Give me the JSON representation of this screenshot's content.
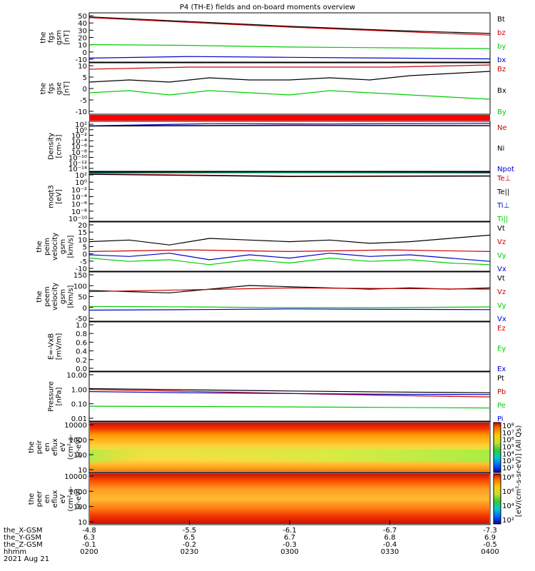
{
  "title": "P4 (TH-E) fields and on-board moments overview",
  "chart_data": [
    {
      "id": "fgs_gsm",
      "type": "line",
      "ylabel": [
        "the",
        "fgs",
        "gsm",
        "[nT]"
      ],
      "yticks": [
        "50",
        "40",
        "30",
        "20",
        "10",
        "0",
        "-10"
      ],
      "ylim": [
        -10,
        52
      ],
      "legend": [
        {
          "label": "Bt",
          "color": "#000000"
        },
        {
          "label": "bz",
          "color": "#cc0000"
        },
        {
          "label": "by",
          "color": "#00cc00"
        },
        {
          "label": "bx",
          "color": "#0000cc"
        }
      ],
      "series": [
        {
          "name": "Bt",
          "color": "#000000",
          "x": [
            0,
            0.25,
            0.5,
            0.75,
            1
          ],
          "values": [
            47,
            41,
            35,
            30,
            26
          ]
        },
        {
          "name": "bz",
          "color": "#cc0000",
          "x": [
            0,
            0.25,
            0.5,
            0.75,
            1
          ],
          "values": [
            46,
            40,
            34,
            29,
            24
          ]
        },
        {
          "name": "by",
          "color": "#00cc00",
          "x": [
            0,
            0.25,
            0.5,
            0.75,
            1
          ],
          "values": [
            12,
            11,
            9,
            8,
            7
          ]
        },
        {
          "name": "bx",
          "color": "#0000cc",
          "x": [
            0,
            0.25,
            0.5,
            0.75,
            1
          ],
          "values": [
            -5,
            -3,
            -4,
            -5,
            -6
          ]
        }
      ]
    },
    {
      "id": "fgs_dsl",
      "type": "line",
      "ylabel": [
        "the",
        "fgs",
        "gse",
        "[nT]"
      ],
      "yticks": [
        "10",
        "5",
        "0",
        "-5",
        "-10"
      ],
      "ylim": [
        -14,
        10
      ],
      "legend": [
        {
          "label": "Bz",
          "color": "#cc0000"
        },
        {
          "label": "Bx",
          "color": "#000000"
        },
        {
          "label": "By",
          "color": "#00cc00"
        }
      ],
      "series": [
        {
          "name": "Bz",
          "color": "#cc0000",
          "x": [
            0,
            0.25,
            0.5,
            0.75,
            1
          ],
          "values": [
            7,
            8,
            8,
            8,
            9
          ]
        },
        {
          "name": "Bx",
          "color": "#000000",
          "x": [
            0,
            0.1,
            0.2,
            0.3,
            0.4,
            0.5,
            0.6,
            0.7,
            0.8,
            0.9,
            1
          ],
          "values": [
            1,
            2,
            1,
            3,
            2,
            2,
            3,
            2,
            4,
            5,
            6
          ]
        },
        {
          "name": "By",
          "color": "#00cc00",
          "x": [
            0,
            0.1,
            0.2,
            0.3,
            0.4,
            0.5,
            0.6,
            0.7,
            0.8,
            0.9,
            1
          ],
          "values": [
            -4,
            -3,
            -5,
            -3,
            -4,
            -5,
            -3,
            -4,
            -5,
            -6,
            -7
          ]
        }
      ]
    },
    {
      "id": "density",
      "type": "line",
      "log": true,
      "ylabel": [
        "Density",
        "[cm-3]"
      ],
      "yticks": [
        "10²",
        "10⁰",
        "10⁻²",
        "10⁻⁴",
        "10⁻⁶",
        "10⁻⁸",
        "10⁻¹⁰",
        "10⁻¹²",
        "10⁻¹⁴"
      ],
      "ylim": [
        -14,
        3
      ],
      "legend": [
        {
          "label": "Ne",
          "color": "#cc0000"
        },
        {
          "label": "Ni",
          "color": "#000000"
        },
        {
          "label": "Npot",
          "color": "#0000cc"
        }
      ],
      "series": [
        {
          "name": "Ne",
          "color": "#cc0000",
          "x": [
            0,
            0.5,
            1
          ],
          "values": [
            1.5,
            1.7,
            1.6
          ]
        },
        {
          "name": "Ni",
          "color": "#000000",
          "x": [
            0,
            0.5,
            1
          ],
          "values": [
            1.4,
            1.6,
            1.5
          ]
        },
        {
          "name": "Npot",
          "color": "#0000cc",
          "x": [
            0,
            0.3,
            0.6,
            1
          ],
          "values": [
            1.5,
            2.2,
            2.1,
            2.3
          ]
        }
      ]
    },
    {
      "id": "temperature",
      "type": "line",
      "log": true,
      "ylabel": [
        "moqt3",
        "[eV]"
      ],
      "yticks": [
        "10²",
        "10⁰",
        "10⁻²",
        "10⁻⁴",
        "10⁻⁶",
        "10⁻⁸",
        "10⁻¹⁰"
      ],
      "ylim": [
        -10,
        3
      ],
      "legend": [
        {
          "label": "Te⊥",
          "color": "#cc0000"
        },
        {
          "label": "Te||",
          "color": "#000000"
        },
        {
          "label": "Ti⊥",
          "color": "#0000cc"
        },
        {
          "label": "Ti||",
          "color": "#00cc00"
        }
      ],
      "series": [
        {
          "name": "Te⊥",
          "color": "#cc0000",
          "x": [
            0,
            0.5,
            1
          ],
          "values": [
            2.5,
            1.9,
            2.0
          ]
        },
        {
          "name": "Te||",
          "color": "#000000",
          "x": [
            0,
            0.5,
            1
          ],
          "values": [
            2.4,
            1.8,
            1.9
          ]
        },
        {
          "name": "Ti⊥",
          "color": "#0000cc",
          "x": [
            0,
            0.5,
            1
          ],
          "values": [
            2.8,
            2.9,
            2.8
          ]
        },
        {
          "name": "Ti||",
          "color": "#00cc00",
          "x": [
            0,
            0.5,
            1
          ],
          "values": [
            2.7,
            2.8,
            2.7
          ]
        }
      ]
    },
    {
      "id": "peim_velocity",
      "type": "line",
      "ylabel": [
        "the",
        "peim",
        "velocity",
        "gsm",
        "[km/s]"
      ],
      "yticks": [
        "20",
        "15",
        "10",
        "5",
        "0",
        "-5",
        "-10"
      ],
      "ylim": [
        -10,
        20
      ],
      "legend": [
        {
          "label": "Vt",
          "color": "#000000"
        },
        {
          "label": "Vz",
          "color": "#cc0000"
        },
        {
          "label": "Vy",
          "color": "#00cc00"
        },
        {
          "label": "Vx",
          "color": "#0000cc"
        }
      ],
      "series": [
        {
          "name": "Vt",
          "color": "#000000",
          "x": [
            0,
            0.1,
            0.2,
            0.3,
            0.4,
            0.5,
            0.6,
            0.7,
            0.8,
            0.9,
            1
          ],
          "values": [
            8,
            9,
            6,
            10,
            9,
            8,
            9,
            7,
            8,
            10,
            12
          ]
        },
        {
          "name": "Vz",
          "color": "#cc0000",
          "x": [
            0,
            0.25,
            0.5,
            0.75,
            1
          ],
          "values": [
            2,
            3,
            2,
            3,
            2
          ]
        },
        {
          "name": "Vy",
          "color": "#00cc00",
          "x": [
            0,
            0.1,
            0.2,
            0.3,
            0.4,
            0.5,
            0.6,
            0.7,
            0.8,
            0.9,
            1
          ],
          "values": [
            -2,
            -4,
            -3,
            -6,
            -3,
            -5,
            -2,
            -4,
            -3,
            -5,
            -6
          ]
        },
        {
          "name": "Vx",
          "color": "#0000cc",
          "x": [
            0,
            0.1,
            0.2,
            0.3,
            0.4,
            0.5,
            0.6,
            0.7,
            0.8,
            0.9,
            1
          ],
          "values": [
            0,
            -1,
            1,
            -3,
            0,
            -2,
            1,
            -1,
            0,
            -2,
            -4
          ]
        }
      ]
    },
    {
      "id": "peem_velocity",
      "type": "line",
      "ylabel": [
        "the",
        "peem",
        "velocity",
        "gsm",
        "[km/s]"
      ],
      "yticks": [
        "150",
        "100",
        "50",
        "0",
        "-50"
      ],
      "ylim": [
        -50,
        150
      ],
      "legend": [
        {
          "label": "Vt",
          "color": "#000000"
        },
        {
          "label": "Vz",
          "color": "#cc0000"
        },
        {
          "label": "Vy",
          "color": "#00cc00"
        },
        {
          "label": "Vx",
          "color": "#0000cc"
        }
      ],
      "series": [
        {
          "name": "Vt",
          "color": "#000000",
          "x": [
            0,
            0.1,
            0.2,
            0.3,
            0.4,
            0.5,
            0.6,
            0.7,
            0.8,
            0.9,
            1
          ],
          "values": [
            75,
            70,
            65,
            80,
            95,
            90,
            85,
            80,
            85,
            80,
            85
          ]
        },
        {
          "name": "Vz",
          "color": "#cc0000",
          "x": [
            0,
            0.5,
            1
          ],
          "values": [
            70,
            85,
            80
          ]
        },
        {
          "name": "Vy",
          "color": "#00cc00",
          "x": [
            0,
            0.25,
            0.5,
            0.75,
            1
          ],
          "values": [
            10,
            8,
            5,
            5,
            8
          ]
        },
        {
          "name": "Vx",
          "color": "#0000cc",
          "x": [
            0,
            0.25,
            0.5,
            0.75,
            1
          ],
          "values": [
            -5,
            -3,
            0,
            -2,
            -3
          ]
        }
      ]
    },
    {
      "id": "efield",
      "type": "line",
      "ylabel": [
        "E=-VxB",
        "[mV/m]"
      ],
      "yticks": [
        "1.0",
        "0.8",
        "0.6",
        "0.4",
        "0.2",
        "0.0"
      ],
      "ylim": [
        0,
        1
      ],
      "legend": [
        {
          "label": "Ez",
          "color": "#cc0000"
        },
        {
          "label": "Ey",
          "color": "#00cc00"
        },
        {
          "label": "Ex",
          "color": "#0000cc"
        }
      ],
      "series": []
    },
    {
      "id": "pressure",
      "type": "line",
      "log": true,
      "ylabel": [
        "Pressure",
        "[nPa]"
      ],
      "yticks": [
        "10.00",
        "1.00",
        "0.10",
        "0.01"
      ],
      "ylim": [
        -2,
        1.3
      ],
      "legend": [
        {
          "label": "Pt",
          "color": "#000000"
        },
        {
          "label": "Pb",
          "color": "#cc0000"
        },
        {
          "label": "Pe",
          "color": "#00cc00"
        },
        {
          "label": "Pi",
          "color": "#0000cc"
        }
      ],
      "series": [
        {
          "name": "Pt",
          "color": "#000000",
          "x": [
            0,
            0.25,
            0.5,
            0.75,
            1
          ],
          "values": [
            0.18,
            0.1,
            0.02,
            -0.05,
            -0.1
          ]
        },
        {
          "name": "Pb",
          "color": "#cc0000",
          "x": [
            0,
            0.25,
            0.5,
            0.75,
            1
          ],
          "values": [
            0.12,
            0.0,
            -0.15,
            -0.28,
            -0.38
          ]
        },
        {
          "name": "Pe",
          "color": "#00cc00",
          "x": [
            0,
            0.25,
            0.5,
            0.75,
            1
          ],
          "values": [
            -1.0,
            -1.02,
            -1.05,
            -1.08,
            -1.12
          ]
        },
        {
          "name": "Pi",
          "color": "#0000cc",
          "x": [
            0,
            0.25,
            0.5,
            0.75,
            1
          ],
          "values": [
            -0.02,
            -0.1,
            -0.15,
            -0.2,
            -0.22
          ]
        }
      ]
    },
    {
      "id": "peir_spectrogram",
      "type": "heatmap",
      "ylabel": [
        "the",
        "peir",
        "en",
        "eflux",
        "eV",
        "(cm²-s-",
        "sr-eV)"
      ],
      "yticks": [
        "10000",
        "1000",
        "100",
        "10"
      ],
      "colorbar": [
        "10⁸",
        "10⁷",
        "10⁶",
        "10⁵",
        "10⁴",
        "10³",
        "10²"
      ]
    },
    {
      "id": "peer_spectrogram",
      "type": "heatmap",
      "ylabel": [
        "the",
        "peer",
        "en",
        "eflux",
        "eV",
        "(cm²-s-",
        "sr-eV)"
      ],
      "yticks": [
        "10000",
        "1000",
        "100",
        "10"
      ],
      "colorbar": [
        "10⁸",
        "10⁶",
        "10⁴",
        "10²"
      ]
    }
  ],
  "colorbar_label": "[eV/(cm²-s-sr-eV)] (All Qs)",
  "xaxis": {
    "row_labels": [
      "the_X-GSM",
      "the_Y-GSM",
      "the_Z-GSM",
      "hhmm",
      "2021 Aug 21"
    ],
    "columns": [
      {
        "vals": [
          "-4.8",
          "6.3",
          "-0.1",
          "0200"
        ]
      },
      {
        "vals": [
          "-5.5",
          "6.5",
          "-0.2",
          "0230"
        ]
      },
      {
        "vals": [
          "-6.1",
          "6.7",
          "-0.3",
          "0300"
        ]
      },
      {
        "vals": [
          "-6.7",
          "6.8",
          "-0.4",
          "0330"
        ]
      },
      {
        "vals": [
          "-7.3",
          "6.9",
          "-0.5",
          "0400"
        ]
      }
    ]
  }
}
